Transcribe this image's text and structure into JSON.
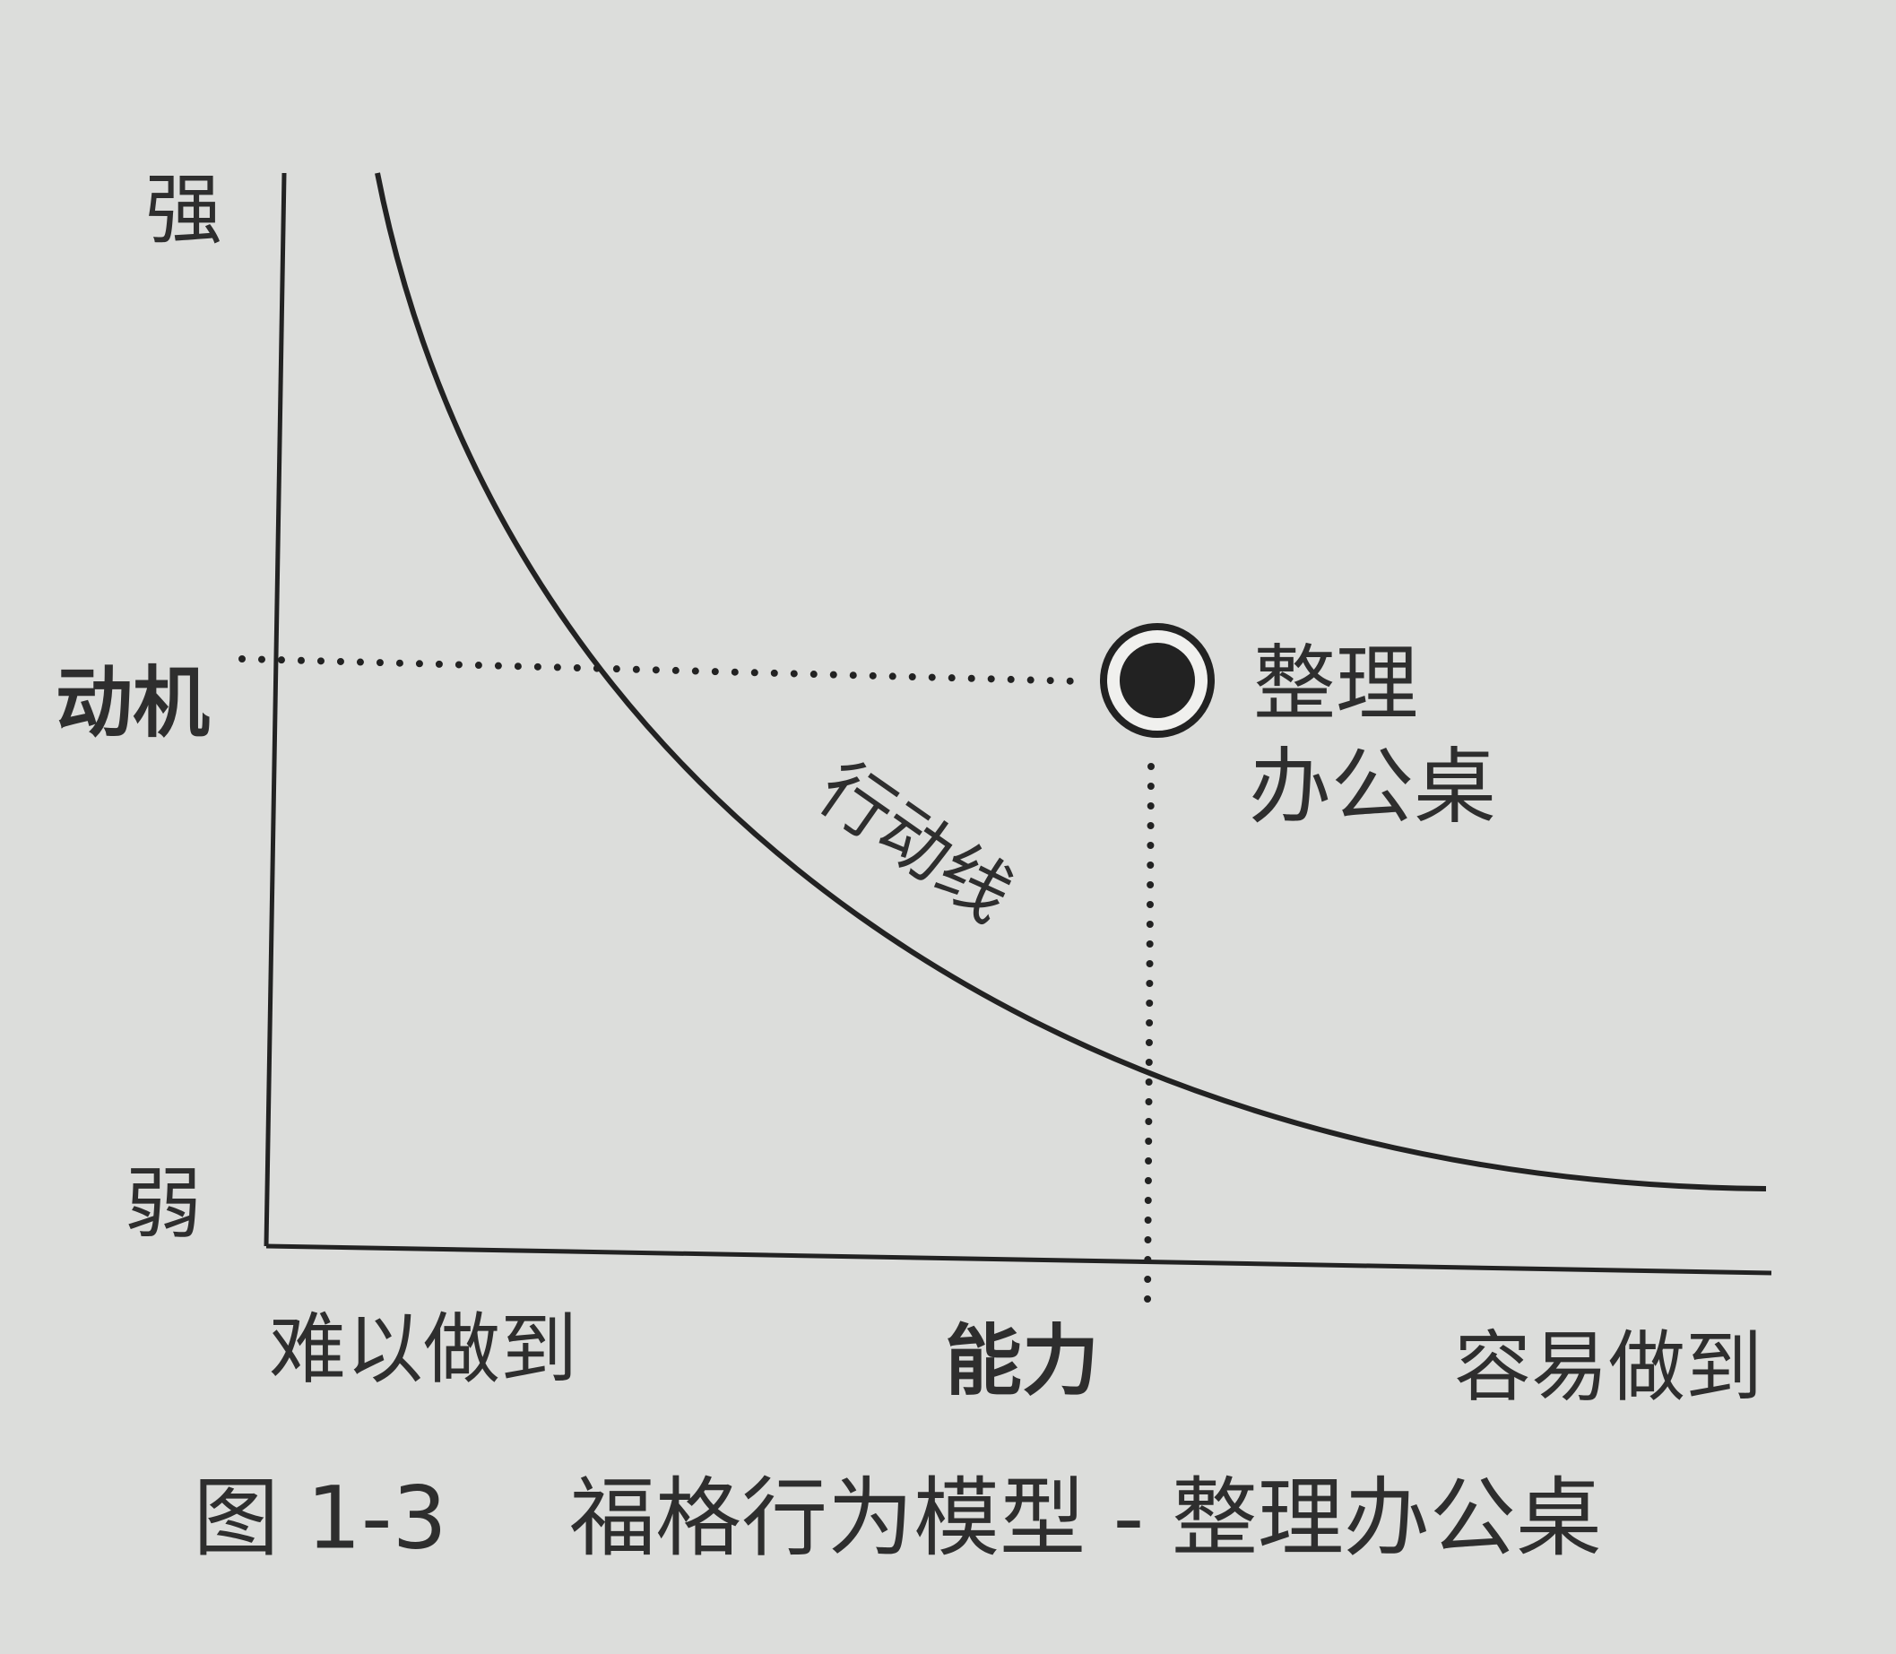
{
  "axes": {
    "y_high": "强",
    "y_label": "动机",
    "y_low": "弱",
    "x_low": "难以做到",
    "x_label": "能力",
    "x_high": "容易做到"
  },
  "curve_label": "行动线",
  "point_label": [
    "整理",
    "办公桌"
  ],
  "figure_number": "图 1-3",
  "caption": "福格行为模型 - 整理办公桌"
}
